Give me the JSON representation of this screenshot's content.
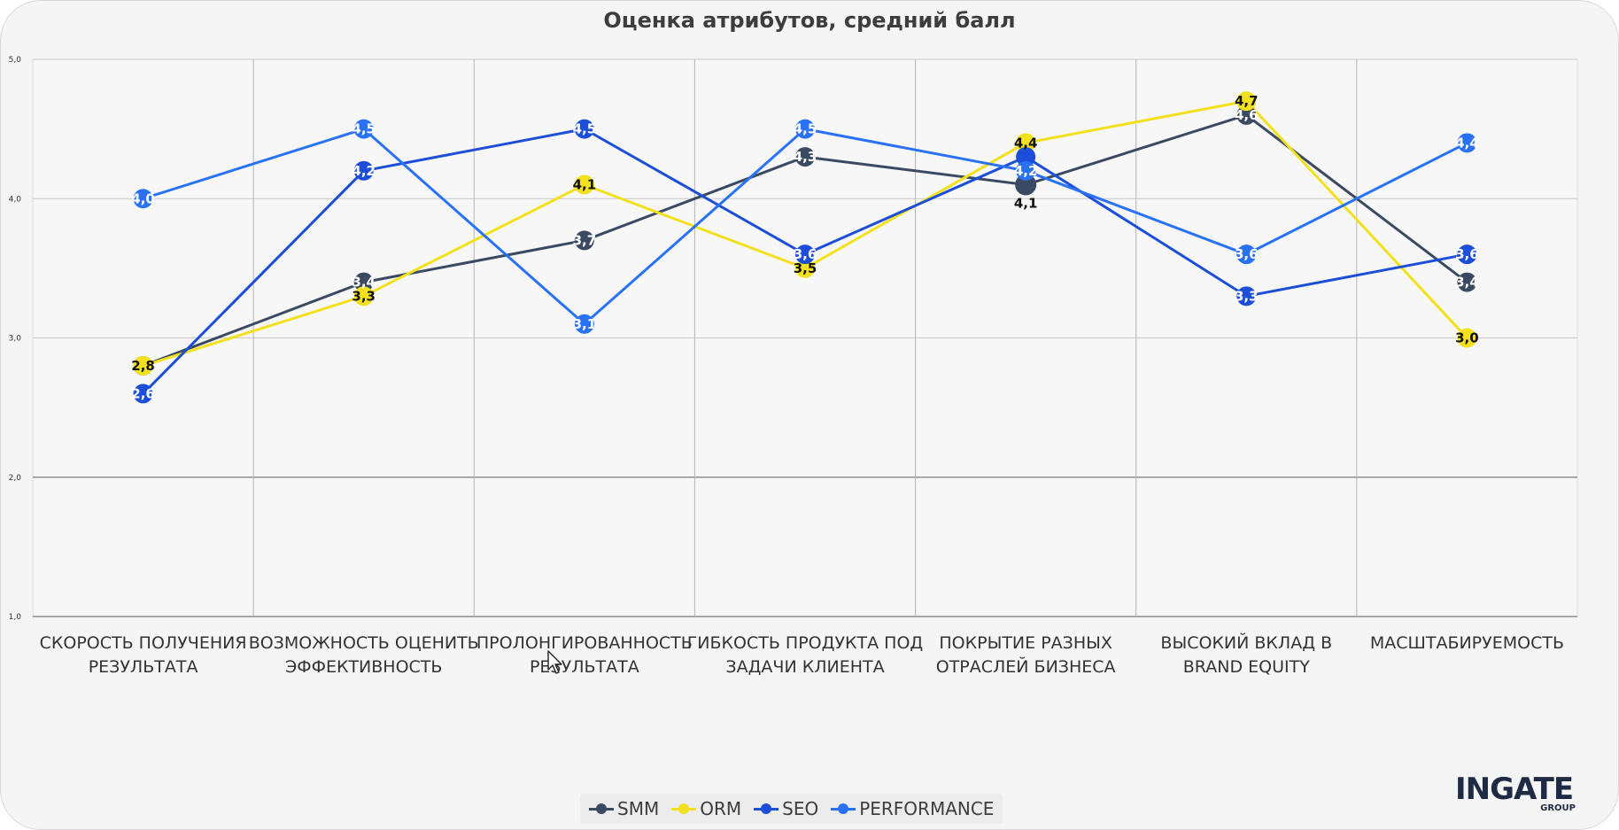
{
  "chart_data": {
    "type": "line",
    "title": "Оценка атрибутов, средний балл",
    "categories": [
      [
        "СКОРОСТЬ ПОЛУЧЕНИЯ",
        "РЕЗУЛЬТАТА"
      ],
      [
        "ВОЗМОЖНОСТЬ ОЦЕНИТЬ",
        "ЭФФЕКТИВНОСТЬ"
      ],
      [
        "ПРОЛОНГИРОВАННОСТЬ",
        "РЕЗУЛЬТАТА"
      ],
      [
        "ГИБКОСТЬ ПРОДУКТА ПОД",
        "ЗАДАЧИ КЛИЕНТА"
      ],
      [
        "ПОКРЫТИЕ РАЗНЫХ",
        "ОТРАСЛЕЙ БИЗНЕСА"
      ],
      [
        "ВЫСОКИЙ ВКЛАД В",
        "BRAND EQUITY"
      ],
      [
        "МАСШТАБИРУЕМОСТЬ"
      ]
    ],
    "ylim": [
      1.0,
      5.0
    ],
    "yticks": [
      "1,0",
      "2,0",
      "3,0",
      "4,0",
      "5,0"
    ],
    "grid": true,
    "legend_position": "bottom",
    "series": [
      {
        "name": "SMM",
        "color": "#3b4a63",
        "values": [
          2.8,
          3.4,
          3.7,
          4.3,
          4.1,
          4.6,
          3.4
        ],
        "labels": [
          "",
          "3,4",
          "3,7",
          "4,3",
          "4,1",
          "4,6",
          "3,4"
        ]
      },
      {
        "name": "ORM",
        "color": "#f3e01e",
        "values": [
          2.8,
          3.3,
          4.1,
          3.5,
          4.4,
          4.7,
          3.0
        ],
        "labels": [
          "2,8",
          "3,3",
          "4,1",
          "3,5",
          "4,4",
          "4,7",
          "3,0"
        ]
      },
      {
        "name": "SEO",
        "color": "#1d4ed8",
        "values": [
          2.6,
          4.2,
          4.5,
          3.6,
          4.3,
          3.3,
          3.6
        ],
        "labels": [
          "2,6",
          "4,2",
          "4,5",
          "3,6",
          "",
          "3,3",
          "3,6"
        ]
      },
      {
        "name": "PERFORMANCE",
        "color": "#2a72f5",
        "values": [
          4.0,
          4.5,
          3.1,
          4.5,
          4.2,
          3.6,
          4.4
        ],
        "labels": [
          "4,0",
          "4,5",
          "3,1",
          "4,5",
          "4,2",
          "3,6",
          "4,4"
        ]
      }
    ]
  },
  "brand": {
    "logo_text": "INGATE",
    "logo_sub": "GROUP"
  }
}
